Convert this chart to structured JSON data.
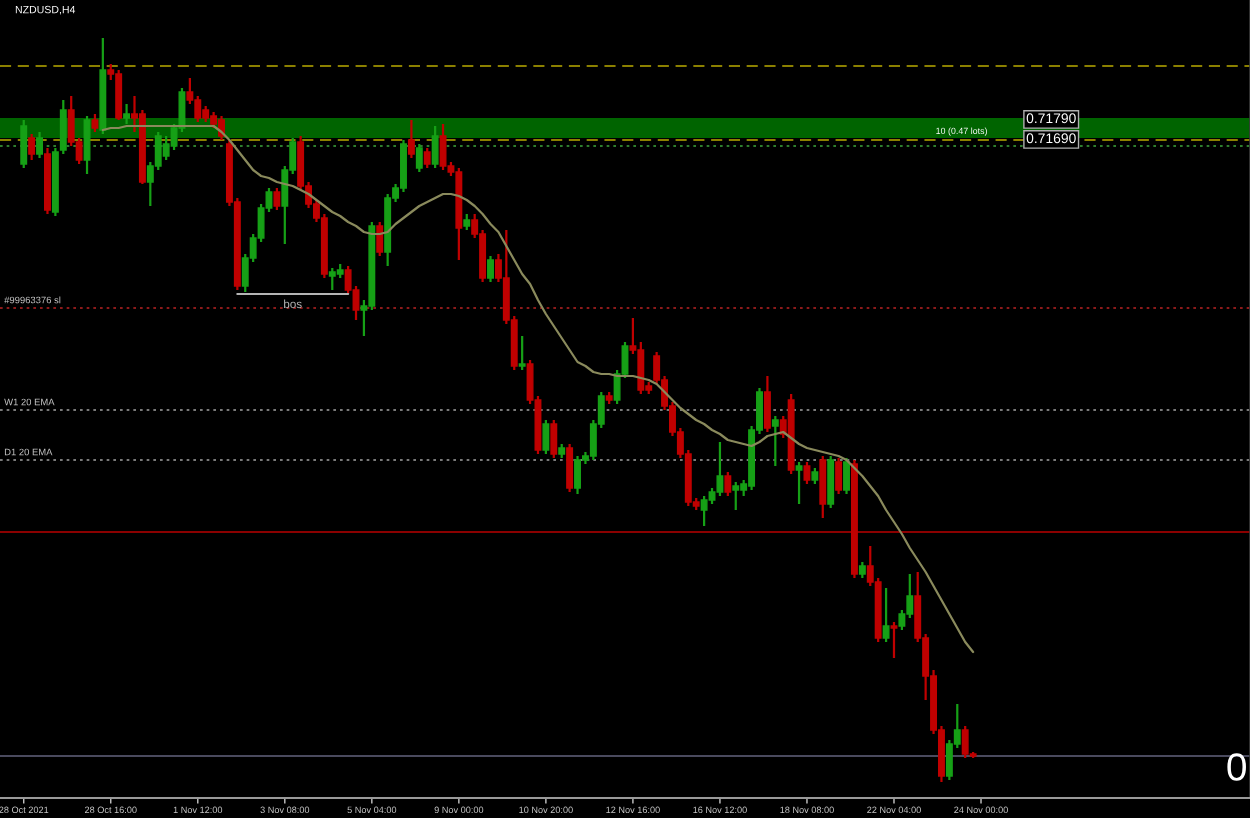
{
  "chart_data": {
    "type": "candlestick",
    "title": "NZDUSD,H4",
    "categories": [
      "28 Oct 2021",
      null,
      null,
      null,
      null,
      null,
      null,
      null,
      null,
      null,
      null,
      "28 Oct 16:00",
      null,
      null,
      null,
      null,
      null,
      null,
      null,
      null,
      null,
      null,
      "1 Nov 12:00",
      null,
      null,
      null,
      null,
      null,
      null,
      null,
      null,
      null,
      null,
      "3 Nov 08:00",
      null,
      null,
      null,
      null,
      null,
      null,
      null,
      null,
      null,
      null,
      "5 Nov 04:00",
      null,
      null,
      null,
      null,
      null,
      null,
      null,
      null,
      null,
      null,
      "9 Nov 00:00",
      null,
      null,
      null,
      null,
      null,
      null,
      null,
      null,
      null,
      null,
      "10 Nov 20:00",
      null,
      null,
      null,
      null,
      null,
      null,
      null,
      null,
      null,
      null,
      "12 Nov 16:00",
      null,
      null,
      null,
      null,
      null,
      null,
      null,
      null,
      null,
      null,
      "16 Nov 12:00",
      null,
      null,
      null,
      null,
      null,
      null,
      null,
      null,
      null,
      null,
      "18 Nov 08:00",
      null,
      null,
      null,
      null,
      null,
      null,
      null,
      null,
      null,
      null,
      "22 Nov 04:00",
      null,
      null,
      null,
      null,
      null,
      null,
      null,
      null,
      null,
      null,
      "24 Nov 00:00"
    ],
    "ohlc": [
      [
        0.7156,
        0.7178,
        0.7154,
        0.7175
      ],
      [
        0.7169,
        0.7171,
        0.7158,
        0.7161
      ],
      [
        0.7161,
        0.7172,
        0.7159,
        0.7169
      ],
      [
        0.7161,
        0.7164,
        0.7131,
        0.7133
      ],
      [
        0.7132,
        0.7164,
        0.713,
        0.7162
      ],
      [
        0.7163,
        0.7188,
        0.7161,
        0.7183
      ],
      [
        0.7183,
        0.719,
        0.7165,
        0.7167
      ],
      [
        0.7167,
        0.7169,
        0.7156,
        0.7158
      ],
      [
        0.7158,
        0.718,
        0.7151,
        0.7178
      ],
      [
        0.7178,
        0.7181,
        0.7172,
        0.7174
      ],
      [
        0.7173,
        0.7219,
        0.7171,
        0.7203
      ],
      [
        0.7203,
        0.7206,
        0.7198,
        0.7201
      ],
      [
        0.7201,
        0.7203,
        0.7178,
        0.7179
      ],
      [
        0.7179,
        0.7186,
        0.7176,
        0.7181
      ],
      [
        0.7181,
        0.719,
        0.7172,
        0.7179
      ],
      [
        0.7181,
        0.7183,
        0.7146,
        0.7147
      ],
      [
        0.7147,
        0.7157,
        0.7135,
        0.7155
      ],
      [
        0.7155,
        0.7172,
        0.7153,
        0.717
      ],
      [
        0.716,
        0.717,
        0.7158,
        0.7166
      ],
      [
        0.7165,
        0.7176,
        0.7163,
        0.7174
      ],
      [
        0.7174,
        0.7194,
        0.7172,
        0.7192
      ],
      [
        0.7192,
        0.7199,
        0.7186,
        0.7188
      ],
      [
        0.7188,
        0.719,
        0.7177,
        0.7179
      ],
      [
        0.7183,
        0.7185,
        0.7177,
        0.7179
      ],
      [
        0.718,
        0.7182,
        0.7174,
        0.7176
      ],
      [
        0.7178,
        0.718,
        0.7168,
        0.717
      ],
      [
        0.7166,
        0.7168,
        0.7135,
        0.7137
      ],
      [
        0.7137,
        0.7139,
        0.7093,
        0.7095
      ],
      [
        0.7095,
        0.7111,
        0.7092,
        0.7109
      ],
      [
        0.7109,
        0.7121,
        0.7107,
        0.7119
      ],
      [
        0.7119,
        0.7136,
        0.7117,
        0.7134
      ],
      [
        0.7134,
        0.7144,
        0.7132,
        0.7142
      ],
      [
        0.7142,
        0.7144,
        0.7133,
        0.7135
      ],
      [
        0.7135,
        0.7155,
        0.7116,
        0.7153
      ],
      [
        0.7153,
        0.7169,
        0.7151,
        0.7167
      ],
      [
        0.7167,
        0.717,
        0.7143,
        0.7145
      ],
      [
        0.7145,
        0.7147,
        0.7134,
        0.7136
      ],
      [
        0.7136,
        0.7138,
        0.7127,
        0.7129
      ],
      [
        0.7129,
        0.7131,
        0.7099,
        0.7101
      ],
      [
        0.71,
        0.7104,
        0.7093,
        0.7102
      ],
      [
        0.7101,
        0.7106,
        0.7099,
        0.7103
      ],
      [
        0.7103,
        0.7105,
        0.7091,
        0.7093
      ],
      [
        0.7093,
        0.7095,
        0.7078,
        0.7083
      ],
      [
        0.7083,
        0.7088,
        0.707,
        0.7085
      ],
      [
        0.7085,
        0.7127,
        0.7083,
        0.7125
      ],
      [
        0.7125,
        0.7127,
        0.711,
        0.7112
      ],
      [
        0.7112,
        0.7141,
        0.7105,
        0.7139
      ],
      [
        0.7139,
        0.7146,
        0.7137,
        0.7144
      ],
      [
        0.7144,
        0.7168,
        0.7142,
        0.7166
      ],
      [
        0.7168,
        0.7178,
        0.7159,
        0.7161
      ],
      [
        0.7154,
        0.7166,
        0.7152,
        0.7164
      ],
      [
        0.7162,
        0.7164,
        0.7154,
        0.7156
      ],
      [
        0.7156,
        0.7175,
        0.7154,
        0.717
      ],
      [
        0.717,
        0.7176,
        0.7153,
        0.7155
      ],
      [
        0.7155,
        0.7157,
        0.715,
        0.7152
      ],
      [
        0.7152,
        0.7154,
        0.7108,
        0.7124
      ],
      [
        0.7125,
        0.7131,
        0.7123,
        0.7128
      ],
      [
        0.7128,
        0.7131,
        0.7119,
        0.7121
      ],
      [
        0.7121,
        0.7123,
        0.7097,
        0.7099
      ],
      [
        0.7099,
        0.711,
        0.7097,
        0.7108
      ],
      [
        0.7108,
        0.7111,
        0.7097,
        0.7099
      ],
      [
        0.7099,
        0.7123,
        0.7076,
        0.7078
      ],
      [
        0.7078,
        0.708,
        0.7053,
        0.7055
      ],
      [
        0.7055,
        0.707,
        0.7053,
        0.7056
      ],
      [
        0.7056,
        0.7058,
        0.7036,
        0.7038
      ],
      [
        0.7038,
        0.704,
        0.7011,
        0.7013
      ],
      [
        0.7013,
        0.7028,
        0.7011,
        0.7026
      ],
      [
        0.7026,
        0.7028,
        0.7009,
        0.7011
      ],
      [
        0.7011,
        0.7016,
        0.7009,
        0.7014
      ],
      [
        0.7014,
        0.7016,
        0.6992,
        0.6994
      ],
      [
        0.6994,
        0.701,
        0.6991,
        0.7008
      ],
      [
        0.7008,
        0.7012,
        0.7006,
        0.701
      ],
      [
        0.701,
        0.7028,
        0.7008,
        0.7026
      ],
      [
        0.7026,
        0.7042,
        0.7024,
        0.704
      ],
      [
        0.704,
        0.7042,
        0.7036,
        0.7038
      ],
      [
        0.7038,
        0.7053,
        0.7036,
        0.7051
      ],
      [
        0.7051,
        0.7067,
        0.7049,
        0.7065
      ],
      [
        0.7065,
        0.7079,
        0.7061,
        0.7063
      ],
      [
        0.7063,
        0.7067,
        0.7041,
        0.7043
      ],
      [
        0.7045,
        0.7047,
        0.7041,
        0.7043
      ],
      [
        0.706,
        0.7062,
        0.7046,
        0.7048
      ],
      [
        0.7048,
        0.705,
        0.7033,
        0.7035
      ],
      [
        0.7035,
        0.7037,
        0.702,
        0.7022
      ],
      [
        0.7022,
        0.7024,
        0.7009,
        0.7011
      ],
      [
        0.7011,
        0.7013,
        0.6985,
        0.6987
      ],
      [
        0.6987,
        0.6989,
        0.6983,
        0.6985
      ],
      [
        0.6983,
        0.699,
        0.6975,
        0.6988
      ],
      [
        0.6988,
        0.6994,
        0.6986,
        0.6992
      ],
      [
        0.6992,
        0.7017,
        0.699,
        0.7
      ],
      [
        0.7,
        0.7002,
        0.699,
        0.6992
      ],
      [
        0.6993,
        0.6997,
        0.6983,
        0.6995
      ],
      [
        0.6993,
        0.6998,
        0.699,
        0.6996
      ],
      [
        0.6995,
        0.7025,
        0.6993,
        0.7023
      ],
      [
        0.7023,
        0.7044,
        0.7021,
        0.7042
      ],
      [
        0.7042,
        0.705,
        0.7022,
        0.7024
      ],
      [
        0.7025,
        0.703,
        0.7005,
        0.7028
      ],
      [
        0.7028,
        0.703,
        0.7019,
        0.7021
      ],
      [
        0.7038,
        0.7041,
        0.7001,
        0.7003
      ],
      [
        0.7003,
        0.7007,
        0.6986,
        0.7005
      ],
      [
        0.7005,
        0.7007,
        0.6996,
        0.6998
      ],
      [
        0.6998,
        0.7004,
        0.6996,
        0.7002
      ],
      [
        0.7008,
        0.701,
        0.6979,
        0.6986
      ],
      [
        0.6986,
        0.701,
        0.6984,
        0.7008
      ],
      [
        0.7007,
        0.7009,
        0.6991,
        0.6993
      ],
      [
        0.6993,
        0.7009,
        0.6991,
        0.7007
      ],
      [
        0.7006,
        0.7008,
        0.6949,
        0.6951
      ],
      [
        0.6951,
        0.6957,
        0.6949,
        0.6955
      ],
      [
        0.6955,
        0.6965,
        0.6945,
        0.6947
      ],
      [
        0.6947,
        0.6949,
        0.6917,
        0.6919
      ],
      [
        0.6919,
        0.6944,
        0.6917,
        0.6925
      ],
      [
        0.6925,
        0.6927,
        0.6909,
        0.6924
      ],
      [
        0.6925,
        0.6933,
        0.6923,
        0.6931
      ],
      [
        0.6931,
        0.6951,
        0.6929,
        0.694
      ],
      [
        0.694,
        0.6952,
        0.6917,
        0.6919
      ],
      [
        0.6919,
        0.6921,
        0.6888,
        0.69
      ],
      [
        0.69,
        0.6903,
        0.6871,
        0.6873
      ],
      [
        0.6873,
        0.6875,
        0.6847,
        0.685
      ],
      [
        0.685,
        0.6868,
        0.6848,
        0.6866
      ],
      [
        0.6866,
        0.6886,
        0.6864,
        0.6873
      ],
      [
        0.6873,
        0.6875,
        0.6859,
        0.6861
      ],
      [
        0.6861,
        0.6862,
        0.6859,
        0.686
      ],
      null
    ],
    "colors": [
      "#16a016",
      "#c00000",
      "#16a016",
      "#c00000",
      "#16a016",
      "#16a016",
      "#c00000",
      "#c00000",
      "#16a016",
      "#c00000",
      "#16a016",
      "#c00000",
      "#c00000",
      "#16a016",
      "#c00000",
      "#c00000",
      "#16a016",
      "#16a016",
      "#16a016",
      "#16a016",
      "#16a016",
      "#c00000",
      "#c00000",
      "#c00000",
      "#c00000",
      "#c00000",
      "#c00000",
      "#c00000",
      "#16a016",
      "#16a016",
      "#16a016",
      "#16a016",
      "#c00000",
      "#16a016",
      "#16a016",
      "#c00000",
      "#c00000",
      "#c00000",
      "#c00000",
      "#16a016",
      "#16a016",
      "#c00000",
      "#c00000",
      "#16a016",
      "#16a016",
      "#c00000",
      "#16a016",
      "#16a016",
      "#16a016",
      "#c00000",
      "#16a016",
      "#c00000",
      "#16a016",
      "#c00000",
      "#c00000",
      "#c00000",
      "#16a016",
      "#c00000",
      "#c00000",
      "#16a016",
      "#c00000",
      "#c00000",
      "#c00000",
      "#16a016",
      "#c00000",
      "#c00000",
      "#16a016",
      "#c00000",
      "#16a016",
      "#c00000",
      "#16a016",
      "#16a016",
      "#16a016",
      "#16a016",
      "#c00000",
      "#16a016",
      "#16a016",
      "#c00000",
      "#c00000",
      "#c00000",
      "#c00000",
      "#c00000",
      "#c00000",
      "#c00000",
      "#c00000",
      "#c00000",
      "#16a016",
      "#16a016",
      "#16a016",
      "#c00000",
      "#16a016",
      "#16a016",
      "#16a016",
      "#16a016",
      "#c00000",
      "#16a016",
      "#c00000",
      "#c00000",
      "#16a016",
      "#c00000",
      "#16a016",
      "#c00000",
      "#16a016",
      "#c00000",
      "#16a016",
      "#c00000",
      "#16a016",
      "#c00000",
      "#c00000",
      "#16a016",
      "#c00000",
      "#16a016",
      "#16a016",
      "#c00000",
      "#c00000",
      "#c00000",
      "#c00000",
      "#16a016",
      "#16a016",
      "#c00000",
      "#c00000",
      null
    ],
    "series": [
      {
        "type": "line",
        "color": "#8a8a5c",
        "values": [
          null,
          null,
          null,
          null,
          null,
          null,
          null,
          null,
          null,
          null,
          0.7173,
          0.7174,
          0.7174,
          0.7175,
          0.7175,
          0.7175,
          0.7175,
          0.7175,
          0.7175,
          0.7175,
          0.7175,
          0.7175,
          0.7175,
          0.7175,
          0.7175,
          0.7172,
          0.7168,
          0.7163,
          0.7158,
          0.7153,
          0.715,
          0.7149,
          0.7147,
          0.7146,
          0.7145,
          0.7143,
          0.7141,
          0.7138,
          0.7135,
          0.7132,
          0.713,
          0.7127,
          0.7125,
          0.7122,
          0.7121,
          0.7121,
          0.7122,
          0.7126,
          0.7129,
          0.7132,
          0.7135,
          0.7137,
          0.7139,
          0.7141,
          0.7141,
          0.714,
          0.7138,
          0.7135,
          0.7131,
          0.7126,
          0.7122,
          0.7115,
          0.7108,
          0.7101,
          0.7096,
          0.7088,
          0.7081,
          0.7075,
          0.7069,
          0.7063,
          0.7057,
          0.7055,
          0.7052,
          0.7051,
          0.7051,
          0.705,
          0.705,
          0.705,
          0.7049,
          0.7048,
          0.7046,
          0.7042,
          0.7038,
          0.7034,
          0.7031,
          0.7028,
          0.7026,
          0.7023,
          0.7021,
          0.7018,
          0.7017,
          0.7016,
          0.7015,
          0.7017,
          0.702,
          0.7021,
          0.7022,
          0.7019,
          0.7016,
          0.7014,
          0.7013,
          0.7012,
          0.7011,
          0.701,
          0.7008,
          0.7004,
          0.7,
          0.6995,
          0.699,
          0.6983,
          0.6977,
          0.6971,
          0.6964,
          0.6958,
          0.6952,
          0.6945,
          0.6938,
          0.6931,
          0.6924,
          0.6917,
          0.6912,
          null
        ]
      },
      {
        "type": "line",
        "name": "bos",
        "color": "#b4b4b4",
        "values": [
          null,
          null,
          null,
          null,
          null,
          null,
          null,
          null,
          null,
          null,
          null,
          null,
          null,
          null,
          null,
          null,
          null,
          null,
          null,
          null,
          null,
          null,
          null,
          null,
          null,
          null,
          null,
          0.7091,
          0.7091,
          0.7091,
          0.7091,
          0.7091,
          0.7091,
          0.7091,
          0.7091,
          0.7091,
          0.7091,
          0.7091,
          0.7091,
          0.7091,
          0.7091,
          0.7091,
          null,
          null,
          null,
          null,
          null,
          null,
          null,
          null,
          null,
          null,
          null,
          null,
          null,
          null,
          null,
          null,
          null,
          null,
          null,
          null,
          null,
          null,
          null,
          null,
          null,
          null,
          null,
          null,
          null,
          null,
          null,
          null,
          null,
          null,
          null,
          null,
          null,
          null,
          null,
          null,
          null,
          null,
          null,
          null,
          null,
          null,
          null,
          null,
          null,
          null,
          null,
          null,
          null,
          null,
          null,
          null,
          null,
          null,
          null,
          null,
          null,
          null,
          null,
          null,
          null,
          null,
          null,
          null,
          null,
          null,
          null,
          null,
          null,
          null,
          null,
          null,
          null,
          null,
          null,
          null
        ]
      }
    ],
    "ylim": [
      0.6839,
      0.7238
    ],
    "yticks": [
      {
        "value": 0.7179,
        "label": "0.71790"
      },
      {
        "value": 0.7169,
        "label": "0.71690"
      }
    ],
    "bands": [
      {
        "axis": "y",
        "from": 0.7169,
        "to": 0.7179,
        "label": "10 (0.47 lots)",
        "color": "#006400"
      }
    ],
    "ref_lines": [
      {
        "axis": "y",
        "value": 0.7205,
        "color": "#8b8000",
        "line_style": "dashed"
      },
      {
        "axis": "y",
        "value": 0.7168,
        "color": "#8b8000",
        "line_style": "dashed"
      },
      {
        "axis": "y",
        "value": 0.7165,
        "color": "#2e7d2e",
        "line_style": "dotted"
      },
      {
        "axis": "y",
        "value": 0.7084,
        "label": "#99963376 sl",
        "color": "#8b1a1a",
        "line_style": "dotted"
      },
      {
        "axis": "y",
        "value": 0.7033,
        "label": "W1 20 EMA",
        "color": "#7a7a7a",
        "line_style": "dotted"
      },
      {
        "axis": "y",
        "value": 0.7008,
        "label": "D1 20 EMA",
        "color": "#7a7a7a",
        "line_style": "dotted"
      },
      {
        "axis": "y",
        "value": 0.6972,
        "color": "#8b0000",
        "line_style": "solid"
      },
      {
        "axis": "y",
        "value": 0.686,
        "color": "#4a4a5e",
        "line_style": "solid"
      }
    ],
    "annotations": [
      "0"
    ]
  }
}
